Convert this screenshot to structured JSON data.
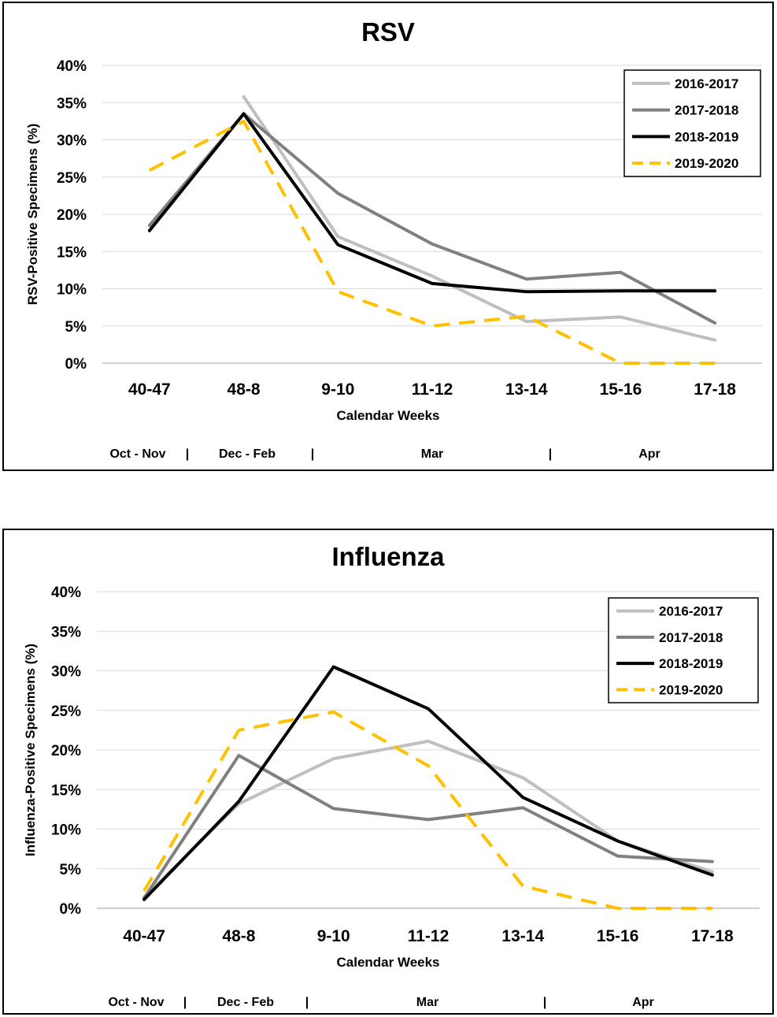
{
  "chart_data": [
    {
      "type": "line",
      "title": "RSV",
      "xlabel": "Calendar Weeks",
      "ylabel": "RSV-Positive Specimens (%)",
      "categories": [
        "40-47",
        "48-8",
        "9-10",
        "11-12",
        "13-14",
        "15-16",
        "17-18"
      ],
      "yticks": [
        "0%",
        "5%",
        "10%",
        "15%",
        "20%",
        "25%",
        "30%",
        "35%",
        "40%"
      ],
      "ylim": [
        0,
        40
      ],
      "grid": "horizontal",
      "legend": "top-right",
      "months": [
        "Oct - Nov",
        "|",
        "Dec - Feb",
        "|",
        "Mar",
        "|",
        "Apr"
      ],
      "series": [
        {
          "name": "2016-2017",
          "color": "#bfbfbf",
          "style": "solid",
          "values": [
            null,
            35.8,
            17.0,
            11.7,
            5.6,
            6.2,
            3.1
          ]
        },
        {
          "name": "2017-2018",
          "color": "#808080",
          "style": "solid",
          "values": [
            18.5,
            33.5,
            22.8,
            16.0,
            11.3,
            12.2,
            5.4
          ]
        },
        {
          "name": "2018-2019",
          "color": "#000000",
          "style": "solid",
          "values": [
            17.8,
            33.5,
            15.9,
            10.7,
            9.6,
            9.7,
            9.7
          ]
        },
        {
          "name": "2019-2020",
          "color": "#ffc000",
          "style": "dashed",
          "values": [
            25.9,
            32.5,
            9.6,
            5.0,
            6.3,
            0,
            0
          ]
        }
      ]
    },
    {
      "type": "line",
      "title": "Influenza",
      "xlabel": "Calendar Weeks",
      "ylabel": "Influenza-Positive Specimens (%)",
      "categories": [
        "40-47",
        "48-8",
        "9-10",
        "11-12",
        "13-14",
        "15-16",
        "17-18"
      ],
      "yticks": [
        "0%",
        "5%",
        "10%",
        "15%",
        "20%",
        "25%",
        "30%",
        "35%",
        "40%"
      ],
      "ylim": [
        0,
        40
      ],
      "grid": "horizontal",
      "legend": "top-right",
      "months": [
        "Oct - Nov",
        "|",
        "Dec - Feb",
        "|",
        "Mar",
        "|",
        "Apr"
      ],
      "series": [
        {
          "name": "2016-2017",
          "color": "#bfbfbf",
          "style": "solid",
          "values": [
            1.4,
            13.2,
            18.9,
            21.1,
            16.5,
            8.5,
            4.6
          ]
        },
        {
          "name": "2017-2018",
          "color": "#808080",
          "style": "solid",
          "values": [
            1.3,
            19.3,
            12.6,
            11.2,
            12.7,
            6.6,
            5.9
          ]
        },
        {
          "name": "2018-2019",
          "color": "#000000",
          "style": "solid",
          "values": [
            1.1,
            13.5,
            30.5,
            25.2,
            14.0,
            8.5,
            4.2
          ]
        },
        {
          "name": "2019-2020",
          "color": "#ffc000",
          "style": "dashed",
          "values": [
            2.2,
            22.5,
            24.8,
            18.0,
            2.8,
            0,
            0
          ]
        }
      ]
    }
  ]
}
